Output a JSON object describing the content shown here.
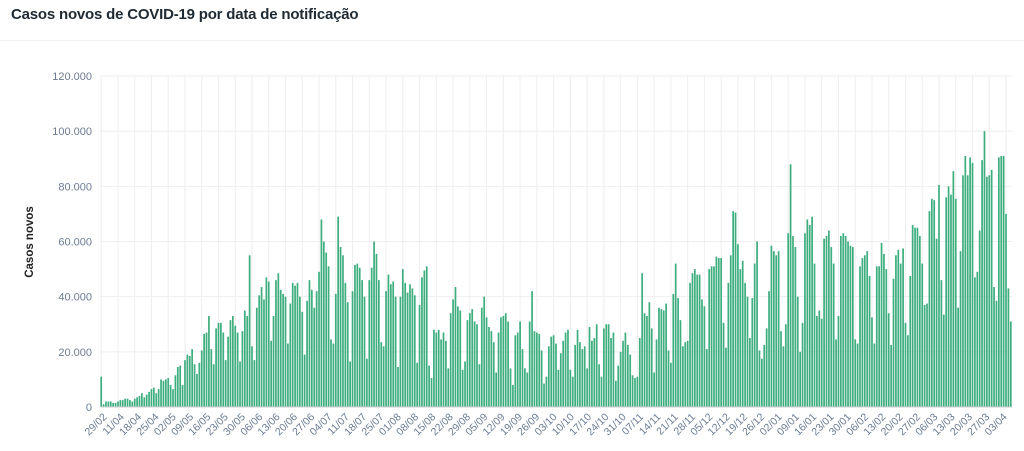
{
  "header": {
    "title": "Casos novos de COVID-19 por data de notificação"
  },
  "colors": {
    "bar": "#3fae7f",
    "grid": "#eeeeee",
    "axis": "#cccccc",
    "tick_text": "#6b7c93"
  },
  "chart_data": {
    "type": "bar",
    "title": "Casos novos de COVID-19 por data de notificação",
    "xlabel": "",
    "ylabel": "Casos novos",
    "ylim": [
      0,
      120000
    ],
    "yticks": [
      0,
      20000,
      40000,
      60000,
      80000,
      100000,
      120000
    ],
    "ytick_labels": [
      "0",
      "20.000",
      "40.000",
      "60.000",
      "80.000",
      "100.000",
      "120.000"
    ],
    "grid": true,
    "start_date": "29/02",
    "x_tick_labels": [
      "29/02",
      "11/04",
      "18/04",
      "25/04",
      "02/05",
      "09/05",
      "16/05",
      "23/05",
      "30/05",
      "06/06",
      "13/06",
      "20/06",
      "27/06",
      "04/07",
      "11/07",
      "18/07",
      "25/07",
      "01/08",
      "08/08",
      "15/08",
      "22/08",
      "29/08",
      "05/09",
      "12/09",
      "19/09",
      "26/09",
      "03/10",
      "10/10",
      "17/10",
      "24/10",
      "31/10",
      "07/11",
      "14/11",
      "21/11",
      "28/11",
      "05/12",
      "12/12",
      "19/12",
      "26/12",
      "02/01",
      "09/01",
      "16/01",
      "23/01",
      "30/01",
      "06/02",
      "13/02",
      "20/02",
      "27/02",
      "06/03",
      "13/03",
      "20/03",
      "27/03",
      "03/04"
    ],
    "values": [
      11000,
      1000,
      2000,
      2000,
      2000,
      1500,
      1500,
      2000,
      2500,
      2500,
      3000,
      3000,
      2500,
      2000,
      3000,
      3500,
      4000,
      5000,
      3500,
      4500,
      5500,
      6500,
      7000,
      5000,
      6500,
      10000,
      9500,
      10000,
      10500,
      8000,
      6500,
      11500,
      14500,
      15000,
      8000,
      17000,
      19000,
      18500,
      21000,
      15500,
      12000,
      16000,
      20500,
      26500,
      27000,
      33000,
      21000,
      15500,
      28500,
      30500,
      30500,
      27000,
      17000,
      25500,
      31500,
      33000,
      29500,
      27000,
      16500,
      27500,
      35000,
      33000,
      55000,
      22000,
      17000,
      36000,
      40500,
      43500,
      39000,
      47000,
      45500,
      24000,
      33000,
      46000,
      48500,
      42500,
      41000,
      40000,
      23000,
      37500,
      45000,
      44000,
      45000,
      40000,
      34500,
      19000,
      38500,
      46000,
      42500,
      36000,
      42000,
      49000,
      68000,
      60000,
      56000,
      51000,
      24500,
      23000,
      41000,
      69000,
      58000,
      55000,
      45000,
      38000,
      16500,
      42000,
      51500,
      52000,
      50500,
      46000,
      40000,
      17500,
      46000,
      50500,
      60000,
      55500,
      46000,
      23500,
      22000,
      42000,
      48000,
      44500,
      45500,
      40000,
      14500,
      40000,
      50000,
      45000,
      41500,
      44500,
      43000,
      40500,
      16000,
      37000,
      47000,
      49500,
      51000,
      15000,
      10500,
      28000,
      27000,
      28000,
      24500,
      27000,
      24000,
      14000,
      34000,
      39000,
      43500,
      36500,
      35000,
      13500,
      16500,
      31500,
      34000,
      35500,
      31000,
      30000,
      15500,
      36000,
      40000,
      32500,
      29000,
      27500,
      23500,
      12500,
      27000,
      32500,
      33000,
      34000,
      31000,
      14000,
      8000,
      26000,
      27000,
      31000,
      21000,
      14000,
      12500,
      31000,
      42000,
      27500,
      27000,
      26500,
      20500,
      8500,
      11000,
      22000,
      25500,
      26000,
      23000,
      13500,
      19500,
      24000,
      27000,
      28000,
      13500,
      11000,
      22500,
      28000,
      23500,
      21000,
      22000,
      14000,
      29000,
      24000,
      25000,
      30000,
      15500,
      11000,
      28500,
      30000,
      30000,
      25000,
      27000,
      9500,
      15000,
      20000,
      24000,
      27000,
      22500,
      19000,
      11500,
      10500,
      11000,
      25000,
      48500,
      34000,
      33000,
      38000,
      28500,
      12500,
      24500,
      36000,
      35500,
      35000,
      37500,
      20500,
      16000,
      41000,
      52000,
      39500,
      31500,
      22000,
      23500,
      24000,
      45000,
      48500,
      50000,
      48000,
      48000,
      39000,
      36500,
      21000,
      50000,
      51000,
      51000,
      54500,
      54000,
      54000,
      30500,
      21500,
      45000,
      55000,
      71000,
      70500,
      59000,
      50000,
      53000,
      45000,
      40000,
      25000,
      39500,
      52000,
      60000,
      20500,
      17500,
      22500,
      28500,
      42000,
      58500,
      56500,
      55000,
      56500,
      27500,
      22000,
      30000,
      63000,
      88000,
      62000,
      58000,
      40000,
      20000,
      30500,
      63000,
      68000,
      66000,
      69000,
      52000,
      33000,
      35000,
      32000,
      61000,
      62000,
      64000,
      58000,
      52000,
      24500,
      33000,
      62000,
      63000,
      62000,
      60000,
      58500,
      58000,
      24500,
      23000,
      51000,
      54000,
      55000,
      56500,
      47500,
      32500,
      23000,
      51000,
      51000,
      59500,
      55500,
      50000,
      34000,
      22500,
      46500,
      55000,
      57000,
      52000,
      57500,
      30500,
      26000,
      47500,
      66000,
      65000,
      65000,
      62000,
      52000,
      37000,
      37500,
      71000,
      75500,
      75000,
      61000,
      80500,
      46000,
      33500,
      76000,
      80000,
      77000,
      85500,
      75500,
      36000,
      56500,
      84000,
      91000,
      84000,
      90500,
      88500,
      47000,
      49000,
      64000,
      89500,
      100000,
      83500,
      84000,
      86000,
      43500,
      38500,
      90500,
      91000,
      91000,
      70000,
      43000,
      31000
    ]
  }
}
